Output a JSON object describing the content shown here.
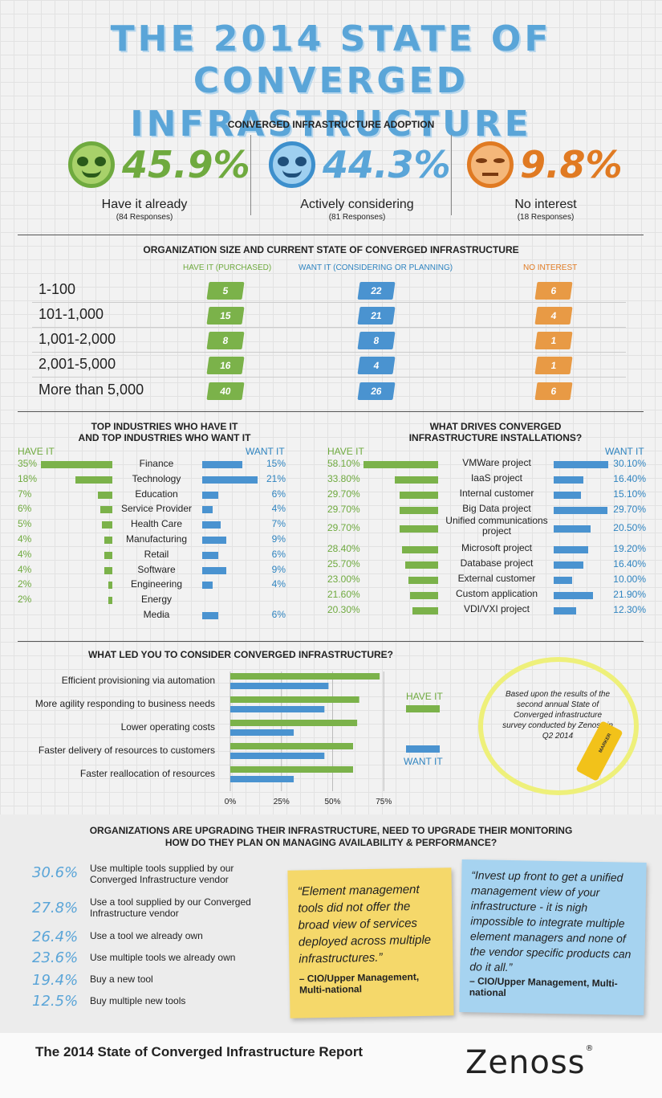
{
  "title": {
    "line1": "THE 2014 STATE OF",
    "line2": "CONVERGED INFRASTRUCTURE"
  },
  "colors": {
    "green": "#7bb24a",
    "blue": "#4a93d0",
    "orange": "#e89a45",
    "title": "#5aa5d8"
  },
  "adoption": {
    "heading": "CONVERGED INFRASTRUCTURE ADOPTION",
    "items": [
      {
        "icon": "happy-face-sunglasses-icon",
        "pct": "45.9%",
        "label": "Have it already",
        "responses": "(84 Responses)"
      },
      {
        "icon": "grinning-face-icon",
        "pct": "44.3%",
        "label": "Actively considering",
        "responses": "(81 Responses)"
      },
      {
        "icon": "unamused-face-icon",
        "pct": "9.8%",
        "label": "No interest",
        "responses": "(18 Responses)"
      }
    ]
  },
  "org_size": {
    "heading": "ORGANIZATION SIZE AND CURRENT STATE OF CONVERGED INFRASTRUCTURE",
    "columns": [
      "HAVE IT (PURCHASED)",
      "WANT IT (CONSIDERING OR PLANNING)",
      "NO INTEREST"
    ],
    "rows": [
      {
        "label": "1-100",
        "have": "5",
        "want": "22",
        "none": "6"
      },
      {
        "label": "101-1,000",
        "have": "15",
        "want": "21",
        "none": "4"
      },
      {
        "label": "1,001-2,000",
        "have": "8",
        "want": "8",
        "none": "1"
      },
      {
        "label": "2,001-5,000",
        "have": "16",
        "want": "4",
        "none": "1"
      },
      {
        "label": "More than 5,000",
        "have": "40",
        "want": "26",
        "none": "6"
      }
    ]
  },
  "industries": {
    "heading1": "TOP INDUSTRIES WHO HAVE IT",
    "heading2": "AND TOP INDUSTRIES WHO WANT IT",
    "have_label": "HAVE IT",
    "want_label": "WANT IT",
    "rows": [
      {
        "name": "Finance",
        "have": "35%",
        "have_v": 35,
        "want": "15%",
        "want_v": 15
      },
      {
        "name": "Technology",
        "have": "18%",
        "have_v": 18,
        "want": "21%",
        "want_v": 21
      },
      {
        "name": "Education",
        "have": "7%",
        "have_v": 7,
        "want": "6%",
        "want_v": 6
      },
      {
        "name": "Service Provider",
        "have": "6%",
        "have_v": 6,
        "want": "4%",
        "want_v": 4
      },
      {
        "name": "Health Care",
        "have": "5%",
        "have_v": 5,
        "want": "7%",
        "want_v": 7
      },
      {
        "name": "Manufacturing",
        "have": "4%",
        "have_v": 4,
        "want": "9%",
        "want_v": 9
      },
      {
        "name": "Retail",
        "have": "4%",
        "have_v": 4,
        "want": "6%",
        "want_v": 6
      },
      {
        "name": "Software",
        "have": "4%",
        "have_v": 4,
        "want": "9%",
        "want_v": 9
      },
      {
        "name": "Engineering",
        "have": "2%",
        "have_v": 2,
        "want": "4%",
        "want_v": 4
      },
      {
        "name": "Energy",
        "have": "2%",
        "have_v": 2,
        "want": "",
        "want_v": 0
      },
      {
        "name": "Media",
        "have": "",
        "have_v": 0,
        "want": "6%",
        "want_v": 6
      }
    ]
  },
  "drivers": {
    "heading1": "WHAT DRIVES CONVERGED",
    "heading2": "INFRASTRUCTURE INSTALLATIONS?",
    "have_label": "HAVE IT",
    "want_label": "WANT IT",
    "rows": [
      {
        "name": "VMWare project",
        "have": "58.10%",
        "have_v": 58.1,
        "want": "30.10%",
        "want_v": 30.1
      },
      {
        "name": "IaaS project",
        "have": "33.80%",
        "have_v": 33.8,
        "want": "16.40%",
        "want_v": 16.4
      },
      {
        "name": "Internal customer",
        "have": "29.70%",
        "have_v": 29.7,
        "want": "15.10%",
        "want_v": 15.1
      },
      {
        "name": "Big Data project",
        "have": "29.70%",
        "have_v": 29.7,
        "want": "29.70%",
        "want_v": 29.7
      },
      {
        "name": "Unified communications project",
        "have": "29.70%",
        "have_v": 29.7,
        "want": "20.50%",
        "want_v": 20.5
      },
      {
        "name": "Microsoft project",
        "have": "28.40%",
        "have_v": 28.4,
        "want": "19.20%",
        "want_v": 19.2
      },
      {
        "name": "Database project",
        "have": "25.70%",
        "have_v": 25.7,
        "want": "16.40%",
        "want_v": 16.4
      },
      {
        "name": "External customer",
        "have": "23.00%",
        "have_v": 23.0,
        "want": "10.00%",
        "want_v": 10.0
      },
      {
        "name": "Custom application",
        "have": "21.60%",
        "have_v": 21.6,
        "want": "21.90%",
        "want_v": 21.9
      },
      {
        "name": "VDI/VXI project",
        "have": "20.30%",
        "have_v": 20.3,
        "want": "12.30%",
        "want_v": 12.3
      }
    ]
  },
  "chart_data": {
    "type": "bar",
    "title": "WHAT LED YOU TO CONSIDER CONVERGED INFRASTRUCTURE?",
    "categories": [
      "Efficient provisioning via automation",
      "More agility responding to business needs",
      "Lower operating costs",
      "Faster delivery of resources to customers",
      "Faster reallocation of resources"
    ],
    "series": [
      {
        "name": "HAVE IT",
        "values": [
          73,
          63,
          62,
          60,
          60
        ]
      },
      {
        "name": "WANT IT",
        "values": [
          48,
          46,
          31,
          46,
          31
        ]
      }
    ],
    "xticks": [
      "0%",
      "25%",
      "50%",
      "75%"
    ],
    "xlim": [
      0,
      75
    ],
    "orientation": "horizontal",
    "legend": "right"
  },
  "survey_note": "Based upon the results of the second annual State of Converged infrastructure survey conducted by Zenoss in Q2 2014",
  "marker_text": "MARKER",
  "monitoring": {
    "heading1": "ORGANIZATIONS ARE UPGRADING THEIR INFRASTRUCTURE, NEED TO UPGRADE THEIR MONITORING",
    "heading2": "HOW DO THEY PLAN ON MANAGING AVAILABILITY & PERFORMANCE?",
    "items": [
      {
        "pct": "30.6%",
        "label": "Use multiple tools supplied by our Converged Infrastructure vendor"
      },
      {
        "pct": "27.8%",
        "label": "Use a tool supplied by our Converged Infrastructure vendor"
      },
      {
        "pct": "26.4%",
        "label": "Use a tool we already own"
      },
      {
        "pct": "23.6%",
        "label": "Use multiple tools we already own"
      },
      {
        "pct": "19.4%",
        "label": "Buy a new tool"
      },
      {
        "pct": "12.5%",
        "label": "Buy multiple new tools"
      }
    ],
    "quote1": "“Element management tools did not offer the broad view of services deployed across multiple infrastructures.”",
    "quote1_by": "– CIO/Upper Management, Multi-national",
    "quote2": "“Invest up front to get a unified management view of your infrastructure - it is nigh impossible to integrate multiple element managers and none of the vendor specific products can do it all.”",
    "quote2_by": "– CIO/Upper Management, Multi-national"
  },
  "footer": {
    "report": "The 2014 State of Converged Infrastructure Report",
    "brand": "Zenoss",
    "reg": "®"
  }
}
